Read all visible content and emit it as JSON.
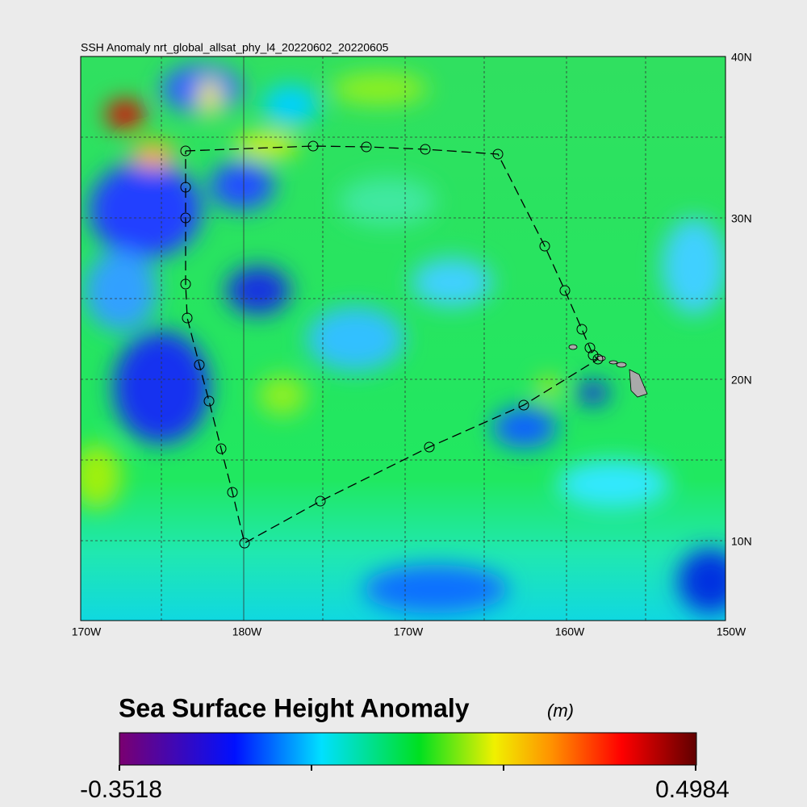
{
  "title": "SSH Anomaly nrt_global_allsat_phy_l4_20220602_20220605",
  "lon_labels": [
    "170W",
    "180W",
    "170W",
    "160W",
    "150W"
  ],
  "lat_labels": [
    "40N",
    "30N",
    "20N",
    "10N"
  ],
  "colorbar": {
    "title": "Sea Surface Height Anomaly",
    "unit": "(m)",
    "min_label": "-0.3518",
    "max_label": "0.4984"
  }
}
